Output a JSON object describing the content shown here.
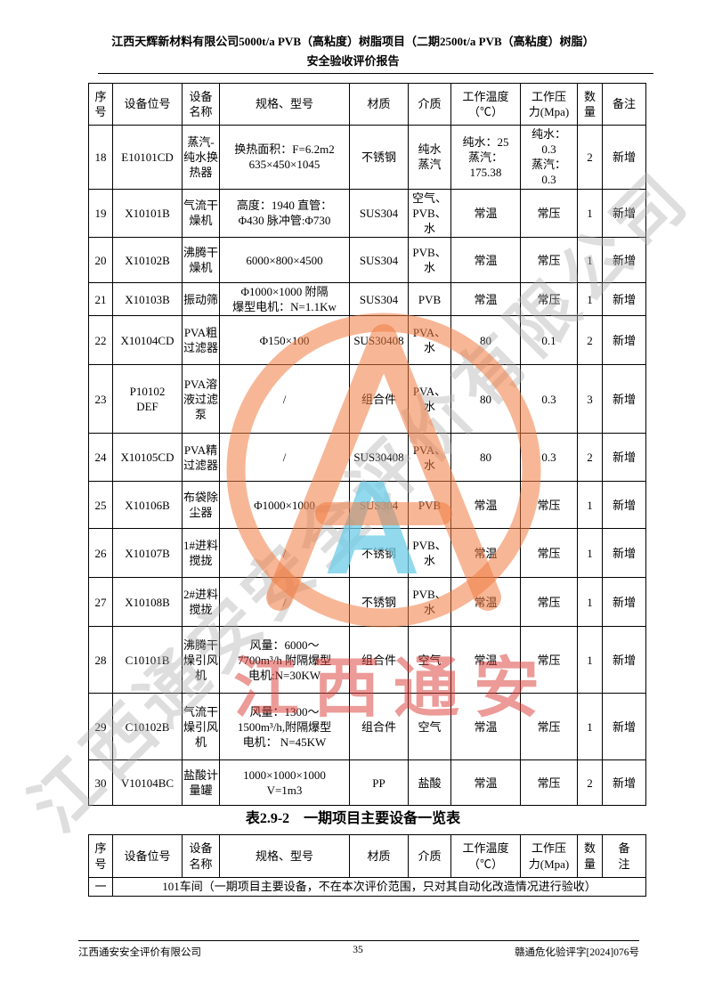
{
  "header": {
    "title_line1": "江西天辉新材料有限公司5000t/a PVB（高粘度）树脂项目（二期2500t/a PVB（高粘度）树脂）",
    "title_line2": "安全验收评价报告"
  },
  "table1": {
    "columns": [
      "no",
      "tag",
      "name",
      "spec",
      "material",
      "medium",
      "temp",
      "pressure",
      "qty",
      "remark"
    ],
    "headers": [
      "序\n号",
      "设备位号",
      "设备\n名称",
      "规格、型号",
      "材质",
      "介质",
      "工作温度\n（℃）",
      "工作压\n力(Mpa)",
      "数\n量",
      "备注"
    ],
    "rows": [
      {
        "no": "18",
        "tag": "E10101CD",
        "name": "蒸汽-纯水换热器",
        "spec": "换热面积：F=6.2m2\n635×450×1045",
        "material": "不锈钢",
        "medium": "纯水\n蒸汽",
        "temp": "纯水：25\n蒸汽：\n175.38",
        "pressure": "纯水：\n0.3\n蒸汽：\n0.3",
        "qty": "2",
        "remark": "新增"
      },
      {
        "no": "19",
        "tag": "X10101B",
        "name": "气流干燥机",
        "spec": "高度：1940 直管：\nΦ430 脉冲管:Φ730",
        "material": "SUS304",
        "medium": "空气、\nPVB、\n水",
        "temp": "常温",
        "pressure": "常压",
        "qty": "1",
        "remark": "新增"
      },
      {
        "no": "20",
        "tag": "X10102B",
        "name": "沸腾干燥机",
        "spec": "6000×800×4500",
        "material": "SUS304",
        "medium": "PVB、\n水",
        "temp": "常温",
        "pressure": "常压",
        "qty": "1",
        "remark": "新增"
      },
      {
        "no": "21",
        "tag": "X10103B",
        "name": "振动筛",
        "spec": "Φ1000×1000 附隔\n爆型电机：N=1.1Kw",
        "material": "SUS304",
        "medium": "PVB",
        "temp": "常温",
        "pressure": "常压",
        "qty": "1",
        "remark": "新增"
      },
      {
        "no": "22",
        "tag": "X10104CD",
        "name": "PVA粗过滤器",
        "spec": "Φ150×100",
        "material": "SUS30408",
        "medium": "PVA、\n水",
        "temp": "80",
        "pressure": "0.1",
        "qty": "2",
        "remark": "新增"
      },
      {
        "no": "23",
        "tag": "P10102\nDEF",
        "name": "PVA溶液过滤泵",
        "spec": "/",
        "material": "组合件",
        "medium": "PVA、\n水",
        "temp": "80",
        "pressure": "0.3",
        "qty": "3",
        "remark": "新增"
      },
      {
        "no": "24",
        "tag": "X10105CD",
        "name": "PVA精过滤器",
        "spec": "/",
        "material": "SUS30408",
        "medium": "PVA、\n水",
        "temp": "80",
        "pressure": "0.3",
        "qty": "2",
        "remark": "新增"
      },
      {
        "no": "25",
        "tag": "X10106B",
        "name": "布袋除尘器",
        "spec": "Φ1000×1000",
        "material": "SUS304",
        "medium": "PVB",
        "temp": "常温",
        "pressure": "常压",
        "qty": "1",
        "remark": "新增"
      },
      {
        "no": "26",
        "tag": "X10107B",
        "name": "1#进料搅拢",
        "spec": "/",
        "material": "不锈钢",
        "medium": "PVB、\n水",
        "temp": "常温",
        "pressure": "常压",
        "qty": "1",
        "remark": "新增"
      },
      {
        "no": "27",
        "tag": "X10108B",
        "name": "2#进料搅拢",
        "spec": "/",
        "material": "不锈钢",
        "medium": "PVB、\n水",
        "temp": "常温",
        "pressure": "常压",
        "qty": "1",
        "remark": "新增"
      },
      {
        "no": "28",
        "tag": "C10101B",
        "name": "沸腾干燥引风机",
        "spec": "风量：6000～\n7700m³/h 附隔爆型\n电机:N=30KW",
        "material": "组合件",
        "medium": "空气",
        "temp": "常温",
        "pressure": "常压",
        "qty": "1",
        "remark": "新增"
      },
      {
        "no": "29",
        "tag": "C10102B",
        "name": "气流干燥引风机",
        "spec": "风量：1300～\n1500m³/h,附隔爆型\n电机： N=45KW",
        "material": "组合件",
        "medium": "空气",
        "temp": "常温",
        "pressure": "常压",
        "qty": "1",
        "remark": "新增"
      },
      {
        "no": "30",
        "tag": "V10104BC",
        "name": "盐酸计量罐",
        "spec": "1000×1000×1000\nV=1m3",
        "material": "PP",
        "medium": "盐酸",
        "temp": "常温",
        "pressure": "常压",
        "qty": "2",
        "remark": "新增"
      }
    ]
  },
  "caption2": "表2.9-2　一期项目主要设备一览表",
  "table2": {
    "headers": [
      "序\n号",
      "设备位号",
      "设备\n名称",
      "规格、型号",
      "材质",
      "介质",
      "工作温度\n（℃）",
      "工作压\n力(Mpa)",
      "数\n量",
      "备\n注"
    ],
    "merged_row": {
      "no": "一",
      "text": "101车间（一期项目主要设备，不在本次评价范围，只对其自动化改造情况进行验收）"
    }
  },
  "footer": {
    "left": "江西通安安全评价有限公司",
    "page_number": "35",
    "right": "赣通危化验评字[2024]076号"
  },
  "watermarks": {
    "diagonal_text": "江西通安安全评价有限公司",
    "red_text": "江西通安",
    "seal_letter": "A",
    "colors": {
      "seal_orange": "#F07B42",
      "seal_cyan": "#6ECDE8",
      "red_text": "#D93831",
      "diagonal_gray": "#ACACAC"
    }
  }
}
